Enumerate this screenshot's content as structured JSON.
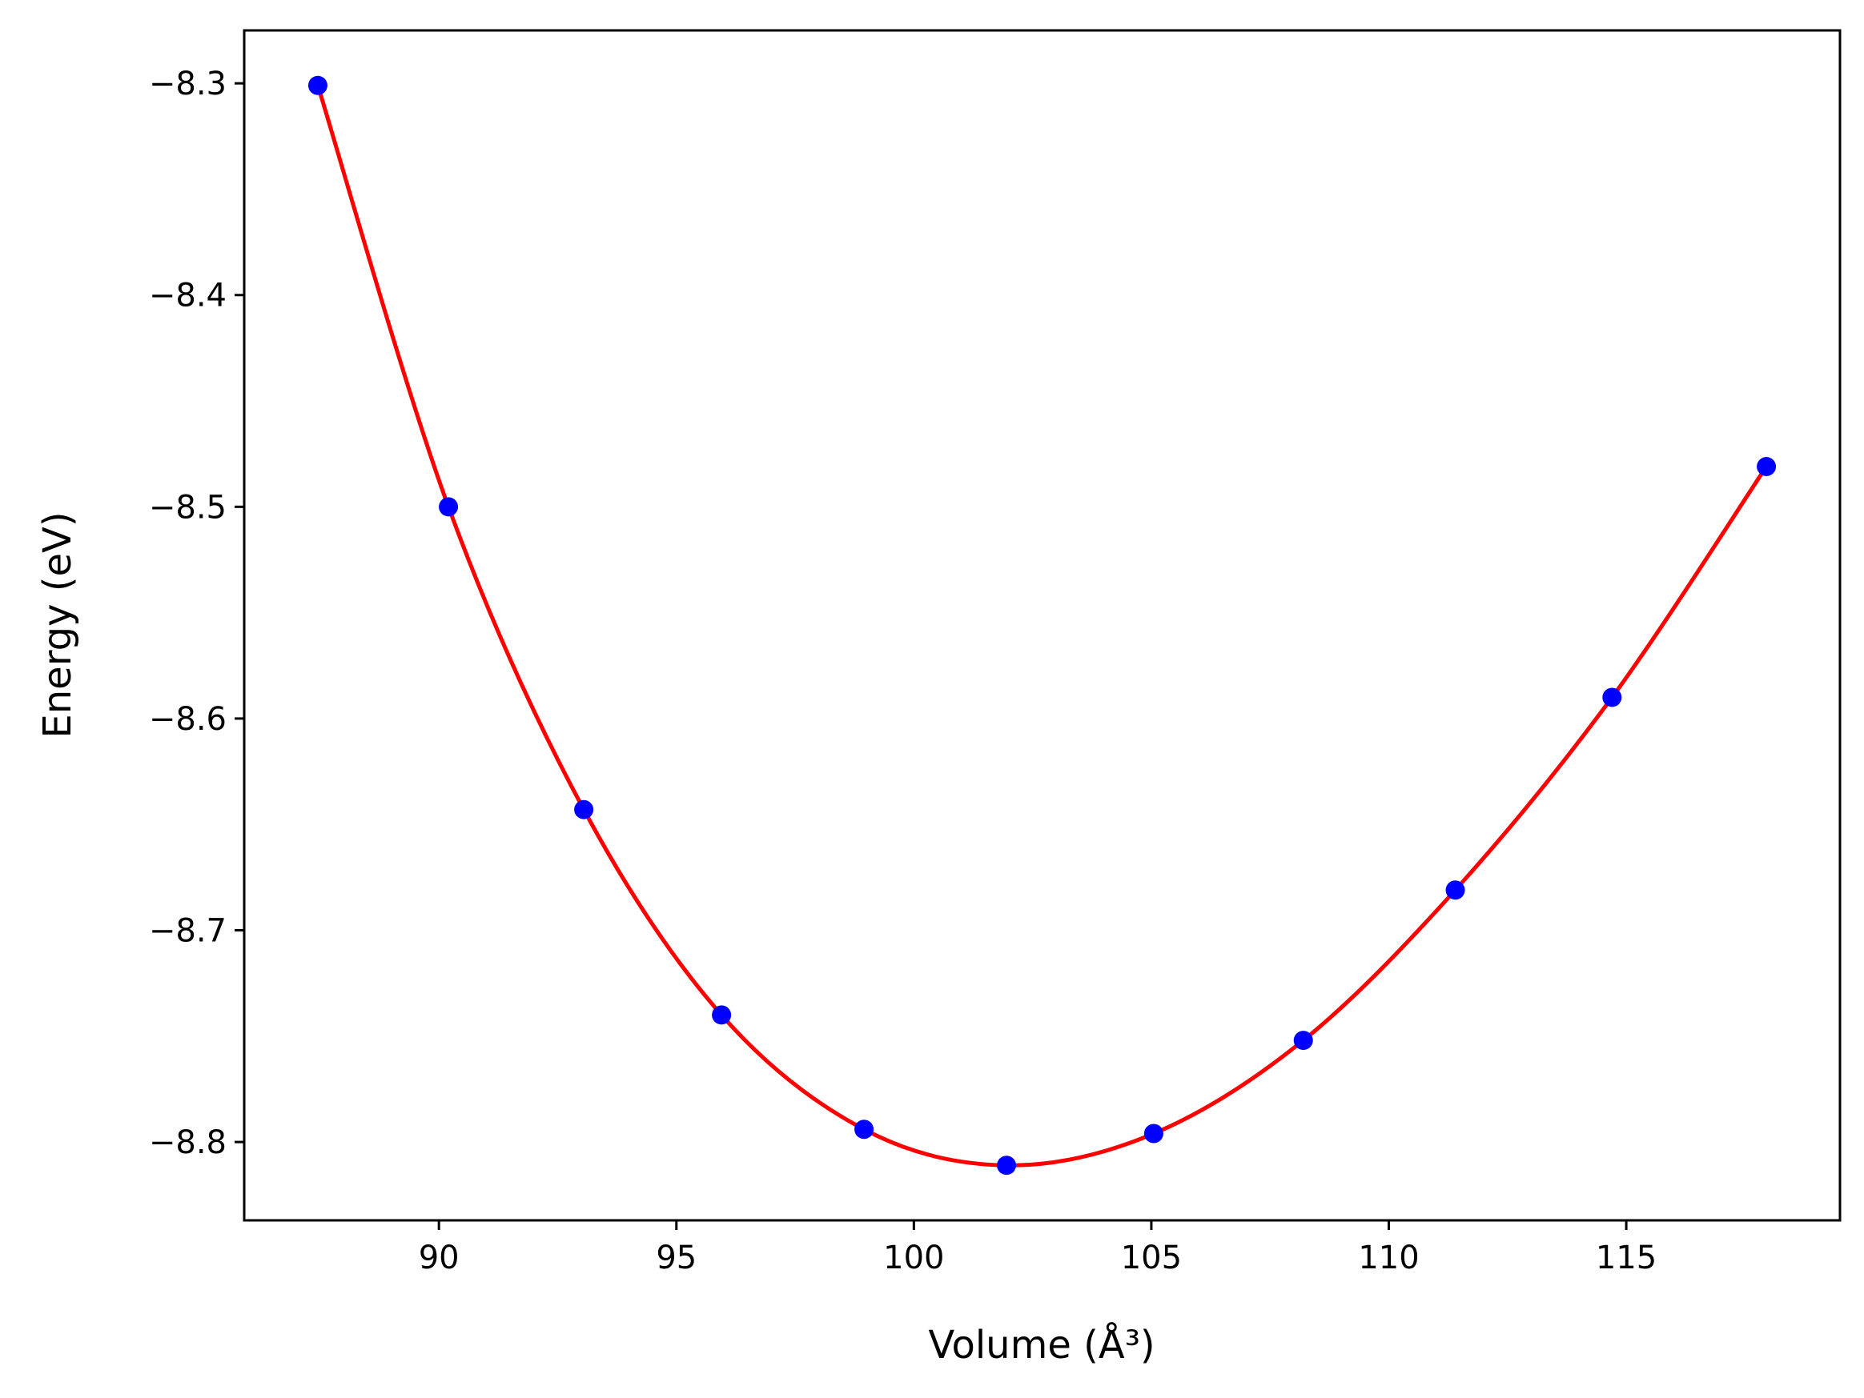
{
  "chart_data": {
    "type": "scatter",
    "title": "",
    "xlabel": "Volume (Å³)",
    "ylabel": "Energy (eV)",
    "xlim": [
      85.9,
      119.5
    ],
    "ylim": [
      -8.837,
      -8.275
    ],
    "x_ticks": [
      {
        "value": 90,
        "label": "90"
      },
      {
        "value": 95,
        "label": "95"
      },
      {
        "value": 100,
        "label": "100"
      },
      {
        "value": 105,
        "label": "105"
      },
      {
        "value": 110,
        "label": "110"
      },
      {
        "value": 115,
        "label": "115"
      }
    ],
    "y_ticks": [
      {
        "value": -8.3,
        "label": "−8.3"
      },
      {
        "value": -8.4,
        "label": "−8.4"
      },
      {
        "value": -8.5,
        "label": "−8.5"
      },
      {
        "value": -8.6,
        "label": "−8.6"
      },
      {
        "value": -8.7,
        "label": "−8.7"
      },
      {
        "value": -8.8,
        "label": "−8.8"
      }
    ],
    "grid": false,
    "series": [
      {
        "kind": "points",
        "color": "#0000ff",
        "x": [
          87.45,
          90.2,
          93.05,
          95.95,
          98.95,
          101.95,
          105.05,
          108.2,
          111.4,
          114.7,
          117.95
        ],
        "y": [
          -8.301,
          -8.5,
          -8.643,
          -8.74,
          -8.794,
          -8.811,
          -8.796,
          -8.752,
          -8.681,
          -8.59,
          -8.481
        ]
      },
      {
        "kind": "fit-line",
        "color": "#ff0000",
        "x": [
          87.45,
          90.2,
          93.05,
          95.95,
          98.95,
          101.95,
          105.05,
          108.2,
          111.4,
          114.7,
          117.95
        ],
        "y": [
          -8.301,
          -8.5,
          -8.643,
          -8.74,
          -8.794,
          -8.811,
          -8.796,
          -8.752,
          -8.681,
          -8.59,
          -8.481
        ]
      }
    ]
  }
}
